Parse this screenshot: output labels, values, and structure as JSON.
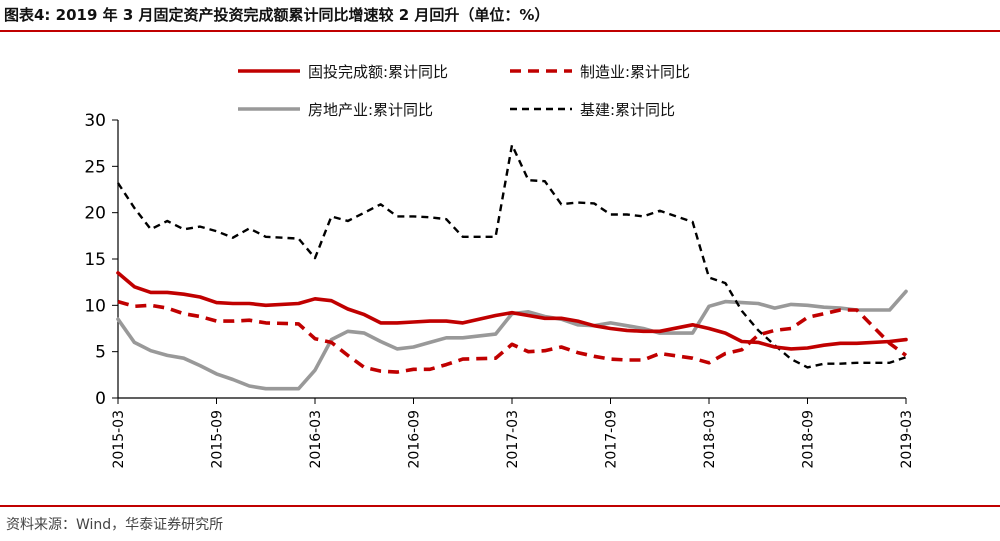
{
  "header": {
    "title": "图表4:  2019 年 3 月固定资产投资完成额累计同比增速较 2 月回升（单位：%）"
  },
  "footer": {
    "source": "资料来源：Wind，华泰证券研究所"
  },
  "colors": {
    "accent": "#c00000",
    "fixed": "#c00000",
    "mfg": "#c00000",
    "realestate": "#999999",
    "infra": "#000000"
  },
  "chart_data": {
    "type": "line",
    "title": "",
    "xlabel": "",
    "ylabel": "",
    "ylim": [
      0,
      30
    ],
    "yticks": [
      0,
      5,
      10,
      15,
      20,
      25,
      30
    ],
    "grid": false,
    "legend_position": "top",
    "x": [
      "2015-03",
      "2015-04",
      "2015-05",
      "2015-06",
      "2015-07",
      "2015-08",
      "2015-09",
      "2015-10",
      "2015-11",
      "2015-12",
      "2016-01",
      "2016-02",
      "2016-03",
      "2016-04",
      "2016-05",
      "2016-06",
      "2016-07",
      "2016-08",
      "2016-09",
      "2016-10",
      "2016-11",
      "2016-12",
      "2017-01",
      "2017-02",
      "2017-03",
      "2017-04",
      "2017-05",
      "2017-06",
      "2017-07",
      "2017-08",
      "2017-09",
      "2017-10",
      "2017-11",
      "2017-12",
      "2018-01",
      "2018-02",
      "2018-03",
      "2018-04",
      "2018-05",
      "2018-06",
      "2018-07",
      "2018-08",
      "2018-09",
      "2018-10",
      "2018-11",
      "2018-12",
      "2019-01",
      "2019-02",
      "2019-03"
    ],
    "xtick_labels": [
      "2015-03",
      "2015-09",
      "2016-03",
      "2016-09",
      "2017-03",
      "2017-09",
      "2018-03",
      "2018-09",
      "2019-03"
    ],
    "series": [
      {
        "name": "固投完成额:累计同比",
        "style": "solid",
        "color": "#c00000",
        "values": [
          13.5,
          12.0,
          11.4,
          11.4,
          11.2,
          10.9,
          10.3,
          10.2,
          10.2,
          10.0,
          null,
          10.2,
          10.7,
          10.5,
          9.6,
          9.0,
          8.1,
          8.1,
          8.2,
          8.3,
          8.3,
          8.1,
          null,
          8.9,
          9.2,
          8.9,
          8.6,
          8.6,
          8.3,
          7.8,
          7.5,
          7.3,
          7.2,
          7.2,
          null,
          7.9,
          7.5,
          7.0,
          6.1,
          6.0,
          5.5,
          5.3,
          5.4,
          5.7,
          5.9,
          5.9,
          null,
          6.1,
          6.3
        ]
      },
      {
        "name": "制造业:累计同比",
        "style": "dashed",
        "color": "#c00000",
        "values": [
          10.4,
          9.9,
          10.0,
          9.7,
          9.1,
          8.8,
          8.3,
          8.3,
          8.4,
          8.1,
          null,
          8.0,
          6.4,
          6.0,
          4.6,
          3.3,
          2.9,
          2.8,
          3.1,
          3.1,
          3.6,
          4.2,
          null,
          4.3,
          5.8,
          5.0,
          5.1,
          5.5,
          4.9,
          4.5,
          4.2,
          4.1,
          4.1,
          4.8,
          null,
          4.3,
          3.8,
          4.8,
          5.2,
          6.8,
          7.3,
          7.5,
          8.7,
          9.1,
          9.5,
          9.5,
          null,
          5.9,
          4.6
        ]
      },
      {
        "name": "房地产业:累计同比",
        "style": "solid",
        "color": "#999999",
        "values": [
          8.5,
          6.0,
          5.1,
          4.6,
          4.3,
          3.5,
          2.6,
          2.0,
          1.3,
          1.0,
          null,
          1.0,
          3.0,
          6.3,
          7.2,
          7.0,
          6.1,
          5.3,
          5.5,
          6.0,
          6.5,
          6.5,
          null,
          6.9,
          9.1,
          9.3,
          8.8,
          8.5,
          7.9,
          7.8,
          8.1,
          7.8,
          7.5,
          7.0,
          null,
          7.0,
          9.9,
          10.4,
          10.3,
          10.2,
          9.7,
          10.1,
          10.0,
          9.8,
          9.7,
          9.5,
          null,
          9.5,
          11.5
        ]
      },
      {
        "name": "基建:累计同比",
        "style": "dashed",
        "color": "#000000",
        "values": [
          23.2,
          20.5,
          18.2,
          19.1,
          18.2,
          18.5,
          18.0,
          17.3,
          18.3,
          17.4,
          null,
          17.2,
          15.1,
          19.6,
          19.1,
          20.0,
          20.9,
          19.6,
          19.6,
          19.5,
          19.3,
          17.4,
          null,
          17.4,
          27.3,
          23.5,
          23.4,
          20.9,
          21.1,
          21.0,
          19.8,
          19.8,
          19.6,
          20.2,
          null,
          19.0,
          13.0,
          12.4,
          9.4,
          7.3,
          5.7,
          4.2,
          3.3,
          3.7,
          3.7,
          3.8,
          null,
          3.8,
          4.4
        ]
      }
    ]
  }
}
